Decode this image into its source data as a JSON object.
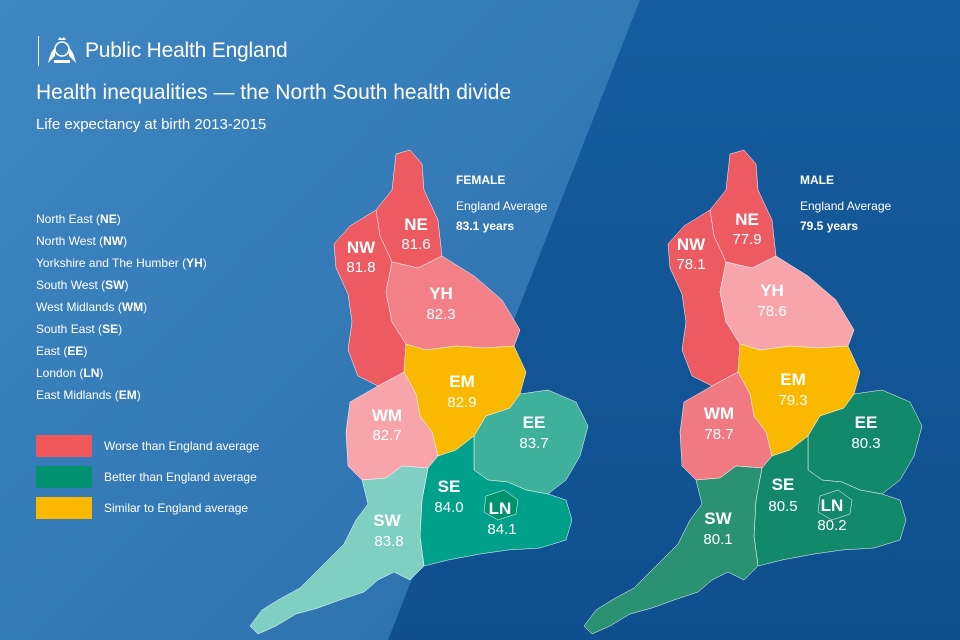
{
  "header": {
    "org_name": "Public Health England",
    "title": "Health inequalities — the North South health divide",
    "subtitle": "Life expectancy at birth 2013-2015"
  },
  "region_key": [
    {
      "name": "North East",
      "code": "NE"
    },
    {
      "name": "North West",
      "code": "NW"
    },
    {
      "name": "Yorkshire and The Humber",
      "code": "YH"
    },
    {
      "name": "South West",
      "code": "SW"
    },
    {
      "name": "West Midlands",
      "code": "WM"
    },
    {
      "name": "South East",
      "code": "SE"
    },
    {
      "name": "East",
      "code": "EE"
    },
    {
      "name": "London",
      "code": "LN"
    },
    {
      "name": "East Midlands",
      "code": "EM"
    }
  ],
  "legend": [
    {
      "label": "Worse than England average",
      "color": "#f0565a"
    },
    {
      "label": "Better than England average",
      "color": "#00916e"
    },
    {
      "label": "Similar to England average",
      "color": "#fbb800"
    }
  ],
  "maps": {
    "female": {
      "heading": "FEMALE",
      "avg_label": "England Average",
      "avg_value": "83.1 years",
      "regions": {
        "NE": {
          "code": "NE",
          "value": "81.6",
          "status": "worse",
          "color": "#ee5a62"
        },
        "NW": {
          "code": "NW",
          "value": "81.8",
          "status": "worse",
          "color": "#ee5a62"
        },
        "YH": {
          "code": "YH",
          "value": "82.3",
          "status": "worse",
          "color": "#f28086"
        },
        "EM": {
          "code": "EM",
          "value": "82.9",
          "status": "similar",
          "color": "#fbb800"
        },
        "WM": {
          "code": "WM",
          "value": "82.7",
          "status": "worse",
          "color": "#f7a4ab"
        },
        "EE": {
          "code": "EE",
          "value": "83.7",
          "status": "better",
          "color": "#3eb09b"
        },
        "SE": {
          "code": "SE",
          "value": "84.0",
          "status": "better",
          "color": "#00a08a"
        },
        "LN": {
          "code": "LN",
          "value": "84.1",
          "status": "better",
          "color": "#00916e"
        },
        "SW": {
          "code": "SW",
          "value": "83.8",
          "status": "better",
          "color": "#7fd0c3"
        }
      }
    },
    "male": {
      "heading": "MALE",
      "avg_label": "England Average",
      "avg_value": "79.5 years",
      "regions": {
        "NE": {
          "code": "NE",
          "value": "77.9",
          "status": "worse",
          "color": "#ee5a62"
        },
        "NW": {
          "code": "NW",
          "value": "78.1",
          "status": "worse",
          "color": "#ee5a62"
        },
        "YH": {
          "code": "YH",
          "value": "78.6",
          "status": "worse",
          "color": "#f7a4ab"
        },
        "EM": {
          "code": "EM",
          "value": "79.3",
          "status": "similar",
          "color": "#fbb800"
        },
        "WM": {
          "code": "WM",
          "value": "78.7",
          "status": "worse",
          "color": "#f17a82"
        },
        "EE": {
          "code": "EE",
          "value": "80.3",
          "status": "better",
          "color": "#13896b"
        },
        "SE": {
          "code": "SE",
          "value": "80.5",
          "status": "better",
          "color": "#13896b"
        },
        "LN": {
          "code": "LN",
          "value": "80.2",
          "status": "better",
          "color": "#13896b"
        },
        "SW": {
          "code": "SW",
          "value": "80.1",
          "status": "better",
          "color": "#2a9272"
        }
      }
    }
  }
}
